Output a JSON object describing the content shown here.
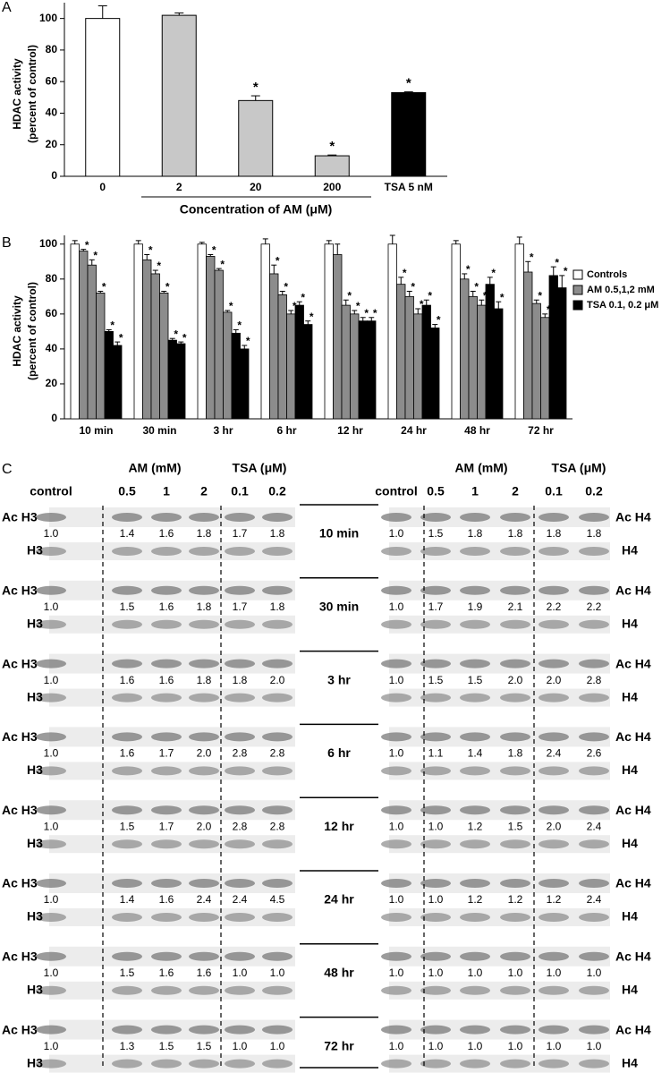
{
  "chart_data": [
    {
      "type": "bar",
      "panel": "A",
      "ylabel": [
        "HDAC activity",
        "(percent of control)"
      ],
      "xlabel": "Concentration of AM (μM)",
      "categories": [
        "0",
        "2",
        "20",
        "200",
        "TSA 5 nM"
      ],
      "values": [
        100,
        102,
        48,
        13,
        53
      ],
      "errors": [
        8,
        1.5,
        3,
        0.5,
        0.5
      ],
      "value_annotations": [
        null,
        null,
        "*",
        "*",
        "*"
      ],
      "colors": [
        "#ffffff",
        "#c8c8c8",
        "#c8c8c8",
        "#c8c8c8",
        "#000000"
      ],
      "ylim": [
        0,
        110
      ],
      "yticks": [
        0,
        20,
        40,
        60,
        80,
        100
      ]
    },
    {
      "type": "grouped-bar",
      "panel": "B",
      "ylabel": [
        "HDAC activity",
        "(percent of control)"
      ],
      "categories": [
        "10 min",
        "30 min",
        "3 hr",
        "6 hr",
        "12 hr",
        "24 hr",
        "48 hr",
        "72 hr"
      ],
      "series": [
        {
          "name": "Controls",
          "color": "#ffffff",
          "values": [
            100,
            100,
            100,
            100,
            100,
            100,
            100,
            100
          ],
          "errors": [
            2,
            2,
            1,
            3,
            2,
            5,
            2,
            4
          ],
          "value_annotations": [
            null,
            null,
            null,
            null,
            null,
            null,
            null,
            null
          ]
        },
        {
          "name": "AM 0.5,1,2 mM",
          "color": "#8c8c8c",
          "values": [
            [
              96,
              88,
              72
            ],
            [
              91,
              83,
              72
            ],
            [
              93,
              85,
              61
            ],
            [
              83,
              71,
              60
            ],
            [
              94,
              65,
              60
            ],
            [
              77,
              70,
              60
            ],
            [
              80,
              70,
              65
            ],
            [
              84,
              66,
              58
            ]
          ],
          "errors": [
            [
              1,
              3,
              1
            ],
            [
              3,
              2,
              1
            ],
            [
              1,
              1,
              1
            ],
            [
              5,
              2,
              2
            ],
            [
              6,
              3,
              2
            ],
            [
              4,
              3,
              3
            ],
            [
              3,
              3,
              3
            ],
            [
              6,
              2,
              2
            ]
          ],
          "value_annotations": [
            [
              "*",
              "*",
              "*"
            ],
            [
              "*",
              "*",
              "*"
            ],
            [
              "*",
              "*",
              "*"
            ],
            [
              "*",
              "*",
              "*"
            ],
            [
              null,
              "*",
              "*"
            ],
            [
              "*",
              "*",
              "*"
            ],
            [
              "*",
              "*",
              "*"
            ],
            [
              "*",
              "*",
              "*"
            ]
          ]
        },
        {
          "name": "TSA 0.1, 0.2 μM",
          "color": "#000000",
          "values": [
            [
              50,
              42
            ],
            [
              45,
              43
            ],
            [
              49,
              40
            ],
            [
              65,
              54
            ],
            [
              56,
              56
            ],
            [
              65,
              52
            ],
            [
              77,
              63
            ],
            [
              82,
              75
            ]
          ],
          "errors": [
            [
              1,
              2
            ],
            [
              1,
              1
            ],
            [
              2,
              2
            ],
            [
              2,
              2
            ],
            [
              2,
              2
            ],
            [
              3,
              2
            ],
            [
              4,
              4
            ],
            [
              5,
              7
            ]
          ],
          "value_annotations": [
            [
              "*",
              "*"
            ],
            [
              "*",
              "*"
            ],
            [
              "*",
              "*"
            ],
            [
              "*",
              "*"
            ],
            [
              "*",
              "*"
            ],
            [
              "*",
              "*"
            ],
            [
              "*",
              "*"
            ],
            [
              "*",
              "*"
            ]
          ]
        }
      ],
      "ylim": [
        0,
        105
      ],
      "yticks": [
        0,
        20,
        40,
        60,
        80,
        100
      ]
    }
  ],
  "blots": {
    "panel": "C",
    "header_groups": [
      "AM (mM)",
      "TSA (μM)"
    ],
    "lanes": [
      "control",
      "0.5",
      "1",
      "2",
      "0.1",
      "0.2"
    ],
    "times": [
      "10 min",
      "30 min",
      "3 hr",
      "6 hr",
      "12 hr",
      "24 hr",
      "48 hr",
      "72 hr"
    ],
    "panels": [
      {
        "acetyl_label": "Ac H3",
        "total_label": "H3",
        "ratios": [
          [
            "1.0",
            "1.4",
            "1.6",
            "1.8",
            "1.7",
            "1.8"
          ],
          [
            "1.0",
            "1.5",
            "1.6",
            "1.8",
            "1.7",
            "1.8"
          ],
          [
            "1.0",
            "1.6",
            "1.6",
            "1.8",
            "1.8",
            "2.0"
          ],
          [
            "1.0",
            "1.6",
            "1.7",
            "2.0",
            "2.8",
            "2.8"
          ],
          [
            "1.0",
            "1.5",
            "1.7",
            "2.0",
            "2.8",
            "2.8"
          ],
          [
            "1.0",
            "1.4",
            "1.6",
            "2.4",
            "2.4",
            "4.5"
          ],
          [
            "1.0",
            "1.5",
            "1.6",
            "1.6",
            "1.0",
            "1.0"
          ],
          [
            "1.0",
            "1.3",
            "1.5",
            "1.5",
            "1.0",
            "1.0"
          ]
        ]
      },
      {
        "acetyl_label": "Ac H4",
        "total_label": "H4",
        "ratios": [
          [
            "1.0",
            "1.5",
            "1.8",
            "1.8",
            "1.8",
            "1.8"
          ],
          [
            "1.0",
            "1.7",
            "1.9",
            "2.1",
            "2.2",
            "2.2"
          ],
          [
            "1.0",
            "1.5",
            "1.5",
            "2.0",
            "2.0",
            "2.8"
          ],
          [
            "1.0",
            "1.1",
            "1.4",
            "1.8",
            "2.4",
            "2.6"
          ],
          [
            "1.0",
            "1.0",
            "1.2",
            "1.5",
            "2.0",
            "2.4"
          ],
          [
            "1.0",
            "1.0",
            "1.2",
            "1.2",
            "1.2",
            "2.4"
          ],
          [
            "1.0",
            "1.0",
            "1.0",
            "1.0",
            "1.0",
            "1.0"
          ],
          [
            "1.0",
            "1.0",
            "1.0",
            "1.0",
            "1.0",
            "1.0"
          ]
        ]
      }
    ]
  }
}
